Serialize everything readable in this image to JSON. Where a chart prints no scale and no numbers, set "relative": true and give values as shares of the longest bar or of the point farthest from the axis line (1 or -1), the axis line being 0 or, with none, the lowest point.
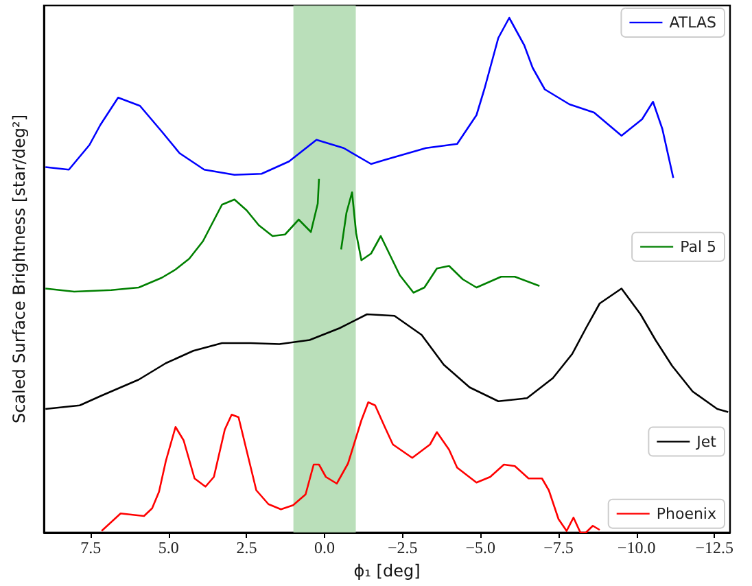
{
  "chart_data": {
    "type": "line",
    "relative": true,
    "xlabel": "ϕ₁ [deg]",
    "ylabel": "Scaled Surface Brightness [star/deg²]",
    "xlim": [
      9,
      -13
    ],
    "xticks": [
      {
        "value": 7.5,
        "label": "7.5"
      },
      {
        "value": 5,
        "label": "5.0"
      },
      {
        "value": 2.5,
        "label": "2.5"
      },
      {
        "value": 0,
        "label": "0.0"
      },
      {
        "value": -2.5,
        "label": "−2.5"
      },
      {
        "value": -5,
        "label": "−5.0"
      },
      {
        "value": -7.5,
        "label": "−7.5"
      },
      {
        "value": -10,
        "label": "−10.0"
      },
      {
        "value": -12.5,
        "label": "−12.5"
      }
    ],
    "legend": "right",
    "grid": false,
    "bands": [
      {
        "axis": "x",
        "from": 1,
        "to": -1,
        "color": "#b3dbb3"
      }
    ],
    "series": [
      {
        "name": "ATLAS",
        "color": "#0000ff",
        "x": [
          8.95,
          8.2,
          7.54,
          7.19,
          6.62,
          5.92,
          5.22,
          4.65,
          3.86,
          2.89,
          2.02,
          1.14,
          0.26,
          -0.61,
          -1.49,
          -1.93,
          -3.25,
          -4.25,
          -4.87,
          -5.13,
          -5.57,
          -5.92,
          -6.4,
          -6.67,
          -7.06,
          -7.85,
          -8.64,
          -9.52,
          -10.18,
          -10.53,
          -10.83,
          -11.18
        ],
        "values": [
          0.71,
          0.705,
          0.753,
          0.792,
          0.845,
          0.829,
          0.779,
          0.737,
          0.705,
          0.695,
          0.697,
          0.721,
          0.763,
          0.747,
          0.716,
          0.724,
          0.747,
          0.755,
          0.811,
          0.863,
          0.961,
          1.0,
          0.947,
          0.903,
          0.861,
          0.832,
          0.816,
          0.771,
          0.803,
          0.837,
          0.784,
          0.689
        ]
      },
      {
        "name": "Pal 5",
        "color": "#008000",
        "x": [
          8.95,
          8.03,
          6.84,
          5.96,
          5.22,
          4.78,
          4.34,
          3.9,
          3.29,
          2.89,
          2.5,
          2.11,
          1.67,
          1.27,
          0.83,
          0.44,
          0.22,
          0.18,
          -0.18,
          -0.53,
          -0.7,
          -0.88,
          -1.01,
          -1.18,
          -1.49,
          -1.8,
          -2.41,
          -2.85,
          -3.2,
          -3.6,
          -3.99,
          -4.43,
          -4.87,
          -5.66,
          -6.1,
          -6.89
        ],
        "values": [
          0.474,
          0.468,
          0.471,
          0.476,
          0.495,
          0.511,
          0.532,
          0.566,
          0.637,
          0.647,
          0.626,
          0.597,
          0.576,
          0.579,
          0.608,
          0.584,
          0.639,
          0.687,
          null,
          0.55,
          0.621,
          0.661,
          0.582,
          0.529,
          0.542,
          0.576,
          0.5,
          0.466,
          0.476,
          0.513,
          0.518,
          0.492,
          0.476,
          0.497,
          0.497,
          0.479
        ]
      },
      {
        "name": "Jet",
        "color": "#000000",
        "x": [
          8.95,
          7.85,
          7.15,
          5.96,
          5.09,
          4.21,
          3.29,
          2.37,
          1.45,
          0.48,
          -0.48,
          -1.36,
          -2.24,
          -3.11,
          -3.82,
          -4.65,
          -5.57,
          -6.49,
          -7.32,
          -7.94,
          -8.38,
          -8.82,
          -9.52,
          -10.13,
          -10.61,
          -11.14,
          -11.8,
          -12.59,
          -12.94
        ],
        "values": [
          0.24,
          0.247,
          0.266,
          0.297,
          0.329,
          0.353,
          0.368,
          0.368,
          0.366,
          0.374,
          0.397,
          0.424,
          0.421,
          0.384,
          0.326,
          0.282,
          0.255,
          0.261,
          0.3,
          0.347,
          0.397,
          0.445,
          0.474,
          0.424,
          0.374,
          0.324,
          0.274,
          0.24,
          0.234
        ]
      },
      {
        "name": "Phoenix",
        "color": "#ff0000",
        "x": [
          7.15,
          6.54,
          6.1,
          5.79,
          5.53,
          5.31,
          5.09,
          4.78,
          4.52,
          4.17,
          3.82,
          3.55,
          3.2,
          2.98,
          2.76,
          2.19,
          1.8,
          1.4,
          1.01,
          0.61,
          0.35,
          0.18,
          -0.04,
          -0.39,
          -0.75,
          -1.18,
          -1.4,
          -1.62,
          -1.93,
          -2.19,
          -2.81,
          -3.38,
          -3.6,
          -3.99,
          -4.25,
          -4.87,
          -5.31,
          -5.75,
          -6.1,
          -6.54,
          -6.97,
          -7.19,
          -7.5,
          -7.76,
          -7.98,
          -8.2,
          -8.38,
          -8.6,
          -8.82
        ],
        "values": [
          0.003,
          0.037,
          0.034,
          0.032,
          0.047,
          0.079,
          0.139,
          0.205,
          0.179,
          0.105,
          0.089,
          0.108,
          0.2,
          0.229,
          0.224,
          0.082,
          0.055,
          0.045,
          0.053,
          0.074,
          0.132,
          0.132,
          0.108,
          0.095,
          0.134,
          0.218,
          0.253,
          0.247,
          0.205,
          0.171,
          0.145,
          0.171,
          0.195,
          0.161,
          0.126,
          0.097,
          0.108,
          0.132,
          0.129,
          0.105,
          0.105,
          0.082,
          0.026,
          0.003,
          0.029,
          0,
          0,
          0.013,
          0.005
        ]
      }
    ]
  }
}
